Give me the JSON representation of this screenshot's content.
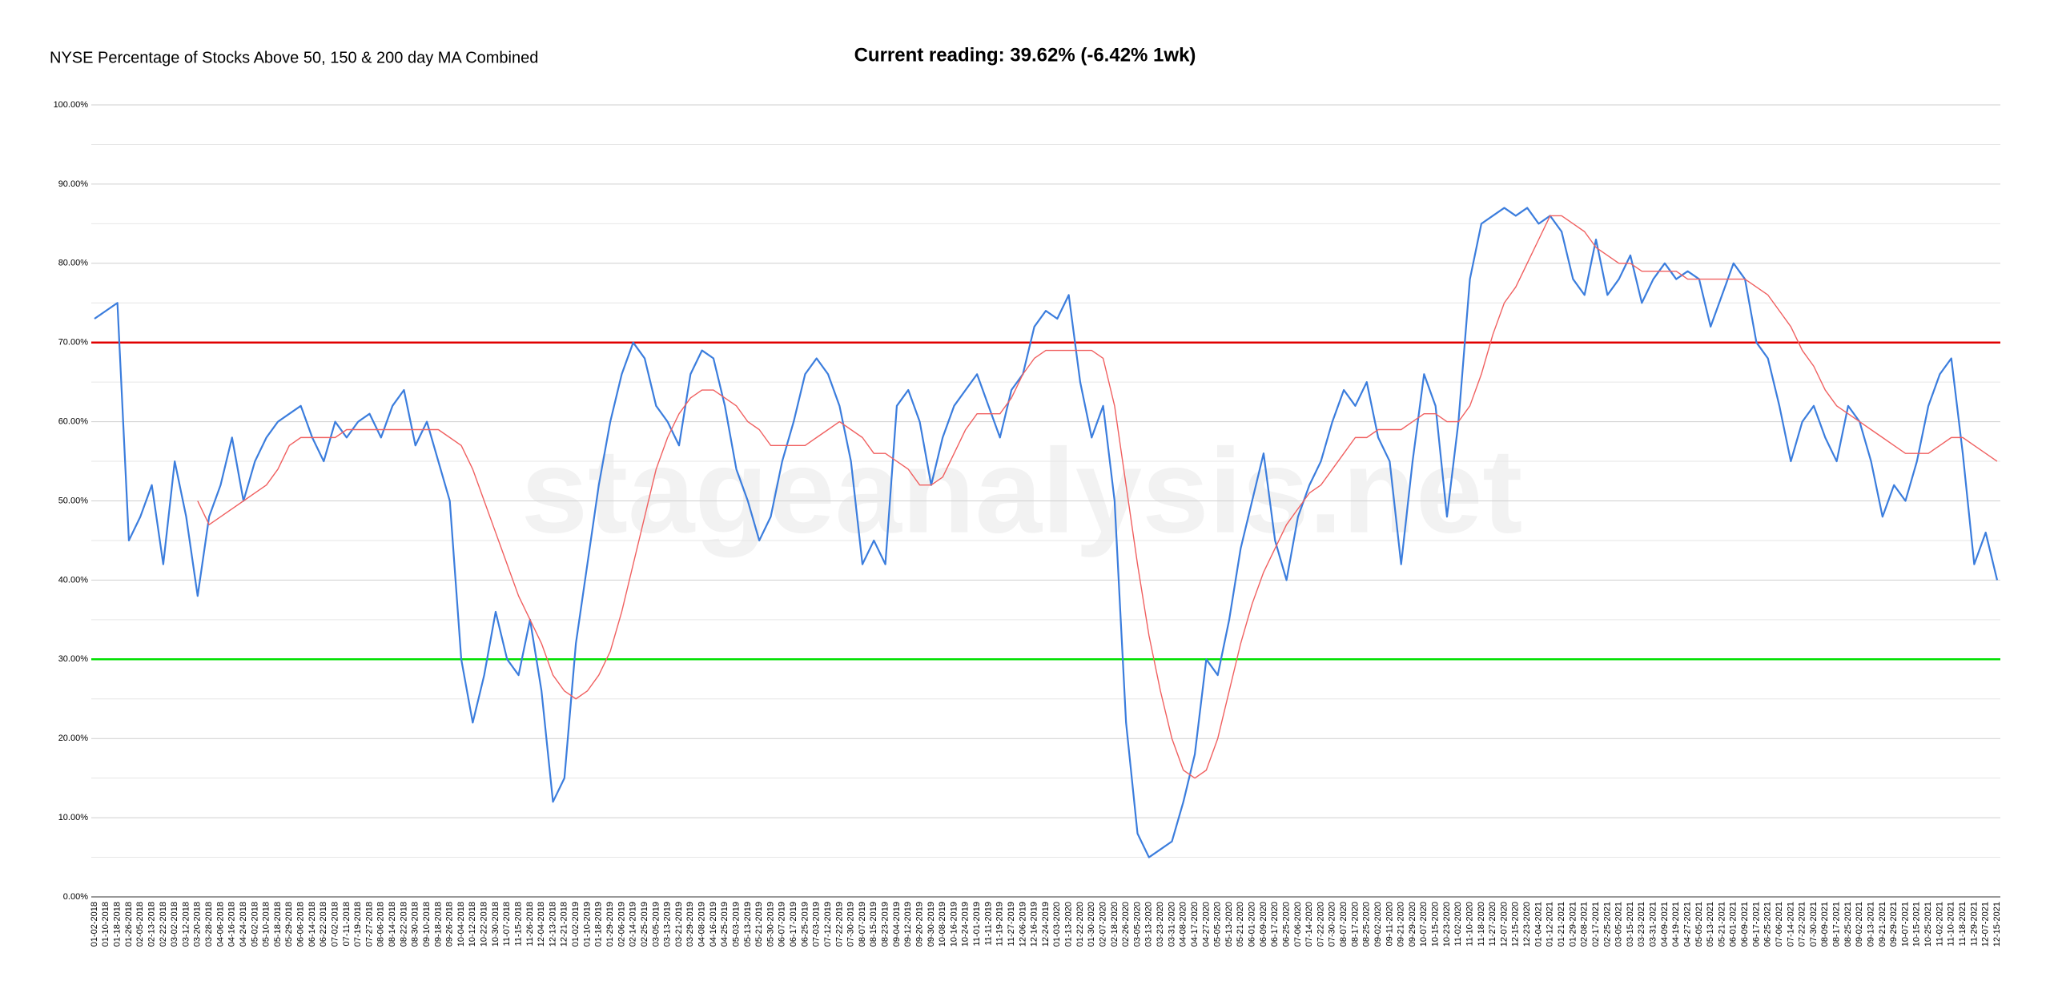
{
  "chart_data": {
    "type": "line",
    "title": "NYSE Percentage of Stocks Above 50, 150 & 200 day MA Combined",
    "subtitle": "Current reading: 39.62% (-6.42% 1wk)",
    "watermark": "stageanalysis.net",
    "categories": [
      "01-02-2018",
      "01-10-2018",
      "01-18-2018",
      "01-26-2018",
      "02-05-2018",
      "02-13-2018",
      "02-22-2018",
      "03-02-2018",
      "03-12-2018",
      "03-20-2018",
      "03-28-2018",
      "04-06-2018",
      "04-16-2018",
      "04-24-2018",
      "05-02-2018",
      "05-10-2018",
      "05-18-2018",
      "05-29-2018",
      "06-06-2018",
      "06-14-2018",
      "06-22-2018",
      "07-02-2018",
      "07-11-2018",
      "07-19-2018",
      "07-27-2018",
      "08-06-2018",
      "08-14-2018",
      "08-22-2018",
      "08-30-2018",
      "09-10-2018",
      "09-18-2018",
      "09-26-2018",
      "10-04-2018",
      "10-12-2018",
      "10-22-2018",
      "10-30-2018",
      "11-07-2018",
      "11-15-2018",
      "11-26-2018",
      "12-04-2018",
      "12-13-2018",
      "12-21-2018",
      "01-02-2019",
      "01-10-2019",
      "01-18-2019",
      "01-29-2019",
      "02-06-2019",
      "02-14-2019",
      "02-25-2019",
      "03-05-2019",
      "03-13-2019",
      "03-21-2019",
      "03-29-2019",
      "04-08-2019",
      "04-16-2019",
      "04-25-2019",
      "05-03-2019",
      "05-13-2019",
      "05-21-2019",
      "05-30-2019",
      "06-07-2019",
      "06-17-2019",
      "06-25-2019",
      "07-03-2019",
      "07-12-2019",
      "07-22-2019",
      "07-30-2019",
      "08-07-2019",
      "08-15-2019",
      "08-23-2019",
      "09-04-2019",
      "09-12-2019",
      "09-20-2019",
      "09-30-2019",
      "10-08-2019",
      "10-16-2019",
      "10-24-2019",
      "11-01-2019",
      "11-11-2019",
      "11-19-2019",
      "11-27-2019",
      "12-06-2019",
      "12-16-2019",
      "12-24-2019",
      "01-03-2020",
      "01-13-2020",
      "01-22-2020",
      "01-30-2020",
      "02-07-2020",
      "02-18-2020",
      "02-26-2020",
      "03-05-2020",
      "03-13-2020",
      "03-23-2020",
      "03-31-2020",
      "04-08-2020",
      "04-17-2020",
      "04-27-2020",
      "05-05-2020",
      "05-13-2020",
      "05-21-2020",
      "06-01-2020",
      "06-09-2020",
      "06-17-2020",
      "06-25-2020",
      "07-06-2020",
      "07-14-2020",
      "07-22-2020",
      "07-30-2020",
      "08-07-2020",
      "08-17-2020",
      "08-25-2020",
      "09-02-2020",
      "09-11-2020",
      "09-21-2020",
      "09-29-2020",
      "10-07-2020",
      "10-15-2020",
      "10-23-2020",
      "11-02-2020",
      "11-10-2020",
      "11-18-2020",
      "11-27-2020",
      "12-07-2020",
      "12-15-2020",
      "12-23-2020",
      "01-04-2021",
      "01-12-2021",
      "01-21-2021",
      "01-29-2021",
      "02-08-2021",
      "02-17-2021",
      "02-25-2021",
      "03-05-2021",
      "03-15-2021",
      "03-23-2021",
      "03-31-2021",
      "04-09-2021",
      "04-19-2021",
      "04-27-2021",
      "05-05-2021",
      "05-13-2021",
      "05-21-2021",
      "06-01-2021",
      "06-09-2021",
      "06-17-2021",
      "06-25-2021",
      "07-06-2021",
      "07-14-2021",
      "07-22-2021",
      "07-30-2021",
      "08-09-2021",
      "08-17-2021",
      "08-25-2021",
      "09-02-2021",
      "09-13-2021",
      "09-21-2021",
      "09-29-2021",
      "10-07-2021",
      "10-15-2021",
      "10-25-2021",
      "11-02-2021",
      "11-10-2021",
      "11-18-2021",
      "11-29-2021",
      "12-07-2021",
      "12-15-2021"
    ],
    "series": [
      {
        "color": "#3b7ddd",
        "width": 2.2,
        "values": [
          73,
          74,
          75,
          45,
          48,
          52,
          42,
          55,
          48,
          38,
          48,
          52,
          58,
          50,
          55,
          58,
          60,
          61,
          62,
          58,
          55,
          60,
          58,
          60,
          61,
          58,
          62,
          64,
          57,
          60,
          55,
          50,
          30,
          22,
          28,
          36,
          30,
          28,
          35,
          26,
          12,
          15,
          32,
          42,
          52,
          60,
          66,
          70,
          68,
          62,
          60,
          57,
          66,
          69,
          68,
          62,
          54,
          50,
          45,
          48,
          55,
          60,
          66,
          68,
          66,
          62,
          55,
          42,
          45,
          42,
          62,
          64,
          60,
          52,
          58,
          62,
          64,
          66,
          62,
          58,
          64,
          66,
          72,
          74,
          73,
          76,
          65,
          58,
          62,
          50,
          22,
          8,
          5,
          6,
          7,
          12,
          18,
          30,
          28,
          35,
          44,
          50,
          56,
          45,
          40,
          48,
          52,
          55,
          60,
          64,
          62,
          65,
          58,
          55,
          42,
          55,
          66,
          62,
          48,
          60,
          78,
          85,
          86,
          87,
          86,
          87,
          85,
          86,
          84,
          78,
          76,
          83,
          76,
          78,
          81,
          75,
          78,
          80,
          78,
          79,
          78,
          72,
          76,
          80,
          78,
          70,
          68,
          62,
          55,
          60,
          62,
          58,
          55,
          62,
          60,
          55,
          48,
          52,
          50,
          55,
          62,
          66,
          68,
          56,
          42,
          46,
          40
        ]
      },
      {
        "color": "#f06060",
        "width": 1.4,
        "values": [
          null,
          null,
          null,
          null,
          null,
          null,
          null,
          null,
          null,
          50,
          47,
          48,
          49,
          50,
          51,
          52,
          54,
          57,
          58,
          58,
          58,
          58,
          59,
          59,
          59,
          59,
          59,
          59,
          59,
          59,
          59,
          58,
          57,
          54,
          50,
          46,
          42,
          38,
          35,
          32,
          28,
          26,
          25,
          26,
          28,
          31,
          36,
          42,
          48,
          54,
          58,
          61,
          63,
          64,
          64,
          63,
          62,
          60,
          59,
          57,
          57,
          57,
          57,
          58,
          59,
          60,
          59,
          58,
          56,
          56,
          55,
          54,
          52,
          52,
          53,
          56,
          59,
          61,
          61,
          61,
          63,
          66,
          68,
          69,
          69,
          69,
          69,
          69,
          68,
          62,
          52,
          42,
          33,
          26,
          20,
          16,
          15,
          16,
          20,
          26,
          32,
          37,
          41,
          44,
          47,
          49,
          51,
          52,
          54,
          56,
          58,
          58,
          59,
          59,
          59,
          60,
          61,
          61,
          60,
          60,
          62,
          66,
          71,
          75,
          77,
          80,
          83,
          86,
          86,
          85,
          84,
          82,
          81,
          80,
          80,
          79,
          79,
          79,
          79,
          78,
          78,
          78,
          78,
          78,
          78,
          77,
          76,
          74,
          72,
          69,
          67,
          64,
          62,
          61,
          60,
          59,
          58,
          57,
          56,
          56,
          56,
          57,
          58,
          58,
          57,
          56,
          55
        ]
      }
    ],
    "reference_lines": [
      {
        "value": 70,
        "color": "#e00000"
      },
      {
        "value": 30,
        "color": "#00e000"
      }
    ],
    "ylim": [
      0,
      100
    ],
    "yticks": [
      {
        "value": 0,
        "label": "0.00%"
      },
      {
        "value": 10,
        "label": "10.00%"
      },
      {
        "value": 20,
        "label": "20.00%"
      },
      {
        "value": 30,
        "label": "30.00%"
      },
      {
        "value": 40,
        "label": "40.00%"
      },
      {
        "value": 50,
        "label": "50.00%"
      },
      {
        "value": 60,
        "label": "60.00%"
      },
      {
        "value": 70,
        "label": "70.00%"
      },
      {
        "value": 80,
        "label": "80.00%"
      },
      {
        "value": 90,
        "label": "90.00%"
      },
      {
        "value": 100,
        "label": "100.00%"
      }
    ],
    "minor_yticks": [
      5,
      15,
      25,
      35,
      45,
      55,
      65,
      75,
      85,
      95
    ],
    "grid": true
  }
}
